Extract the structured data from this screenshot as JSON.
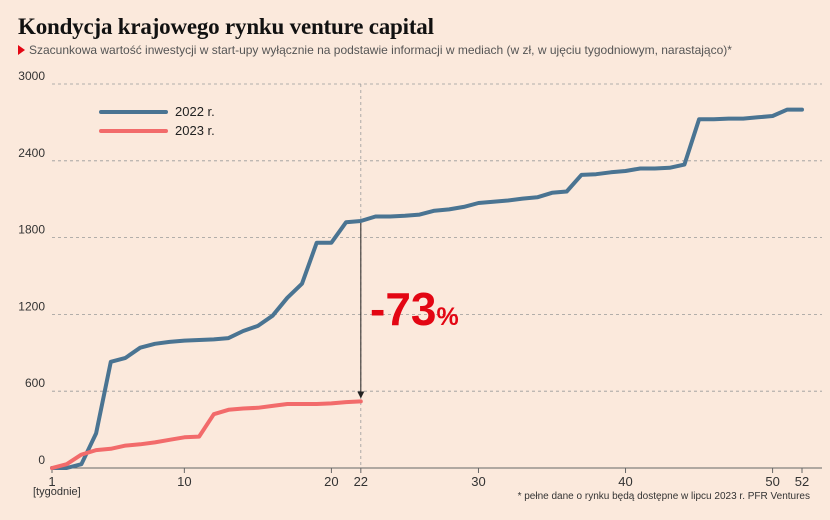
{
  "chart_data": {
    "type": "line",
    "title": "Kondycja krajowego rynku venture capital",
    "subtitle": "Szacunkowa wartość inwestycji w start-upy wyłącznie na podstawie informacji w mediach (w zł, w ujęciu tygodniowym, narastająco)*",
    "xlabel": "[tygodnie]",
    "ylabel": "",
    "xlim": [
      1,
      52
    ],
    "ylim": [
      0,
      3000
    ],
    "x_ticks": [
      1,
      10,
      20,
      22,
      30,
      40,
      50,
      52
    ],
    "y_ticks": [
      0,
      600,
      1200,
      1800,
      2400,
      3000
    ],
    "grid": "horizontal dashed",
    "legend_position": "top-left",
    "series": [
      {
        "name": "2022 r.",
        "color": "#4a7492",
        "x": [
          1,
          2,
          3,
          4,
          5,
          6,
          7,
          8,
          9,
          10,
          11,
          12,
          13,
          14,
          15,
          16,
          17,
          18,
          19,
          20,
          21,
          22,
          23,
          24,
          25,
          26,
          27,
          28,
          29,
          30,
          31,
          32,
          33,
          34,
          35,
          36,
          37,
          38,
          39,
          40,
          41,
          42,
          43,
          44,
          45,
          46,
          47,
          48,
          49,
          50,
          51,
          52
        ],
        "values": [
          0,
          0,
          30,
          270,
          830,
          860,
          940,
          970,
          985,
          995,
          1000,
          1005,
          1015,
          1070,
          1110,
          1190,
          1330,
          1440,
          1760,
          1760,
          1920,
          1930,
          1965,
          1965,
          1970,
          1980,
          2010,
          2020,
          2040,
          2070,
          2080,
          2090,
          2105,
          2115,
          2150,
          2160,
          2290,
          2295,
          2310,
          2320,
          2340,
          2340,
          2345,
          2370,
          2725,
          2725,
          2730,
          2730,
          2740,
          2750,
          2800,
          2800
        ]
      },
      {
        "name": "2023 r.",
        "color": "#f26b6b",
        "x": [
          1,
          2,
          3,
          4,
          5,
          6,
          7,
          8,
          9,
          10,
          11,
          12,
          13,
          14,
          15,
          16,
          17,
          18,
          19,
          20,
          21,
          22
        ],
        "values": [
          0,
          30,
          105,
          140,
          150,
          175,
          185,
          200,
          220,
          240,
          245,
          420,
          455,
          465,
          470,
          485,
          500,
          500,
          500,
          505,
          515,
          520
        ]
      }
    ],
    "annotation": {
      "week": 22,
      "value_text": "-73",
      "unit_text": "%"
    },
    "footnote": "* pełne dane o rynku będą dostępne w lipcu 2023 r. PFR Ventures"
  }
}
